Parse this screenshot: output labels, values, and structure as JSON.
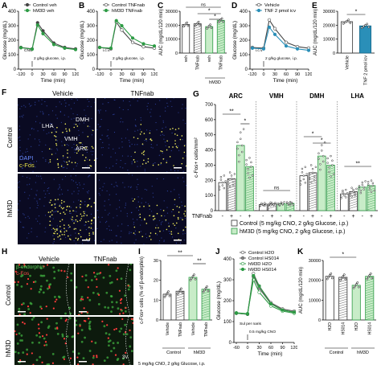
{
  "panel_letters": {
    "a": "A",
    "b": "B",
    "c": "C",
    "d": "D",
    "e": "E",
    "f": "F",
    "g": "G",
    "h": "H",
    "i": "I",
    "j": "J",
    "k": "K"
  },
  "colors": {
    "control": "#444444",
    "hm3d": "#2e9b45",
    "tnf": "#2a8fb8",
    "hm3d_fill": "#c8ecc8",
    "grey": "#9a9a9a"
  },
  "chart_data": [
    {
      "id": "A",
      "type": "line",
      "ylabel": "Glucose (mg/dL)",
      "xlabel": "Time (min)",
      "x": [
        -120,
        0,
        15,
        30,
        60,
        90,
        120
      ],
      "xticks": [
        "-120",
        "0",
        "30",
        "60",
        "90",
        "120"
      ],
      "yticks": [
        "0",
        "100",
        "200",
        "300",
        "400"
      ],
      "ylim": [
        0,
        400
      ],
      "annotations": [
        "CNO",
        "2 g/kg glucose, i.p."
      ],
      "series": [
        {
          "name": "Control veh",
          "values": [
            150,
            140,
            320,
            265,
            180,
            150,
            140
          ]
        },
        {
          "name": "hM3D veh",
          "values": [
            148,
            138,
            305,
            245,
            170,
            145,
            135
          ]
        }
      ]
    },
    {
      "id": "B",
      "type": "line",
      "ylabel": "Glucose (mg/dL)",
      "xlabel": "Time (min)",
      "x": [
        -120,
        0,
        15,
        30,
        60,
        90,
        120
      ],
      "xticks": [
        "-120",
        "0",
        "30",
        "60",
        "90",
        "120"
      ],
      "yticks": [
        "0",
        "100",
        "200",
        "300",
        "400"
      ],
      "ylim": [
        0,
        400
      ],
      "annotations": [
        "i.c.v",
        "2 g/kg glucose, i.p."
      ],
      "series": [
        {
          "name": "Control TNFnab",
          "values": [
            150,
            140,
            325,
            270,
            185,
            155,
            145
          ]
        },
        {
          "name": "hM3D TNFnab",
          "values": [
            150,
            145,
            335,
            300,
            215,
            175,
            160
          ]
        }
      ]
    },
    {
      "id": "C",
      "type": "bar",
      "ylabel": "AUC (mg/dL/120 min)",
      "ylim": [
        0,
        30000
      ],
      "yticks": [
        "0",
        "10000",
        "20000",
        "30000"
      ],
      "categories": [
        "veh",
        "TNFnab",
        "veh",
        "TNFnab"
      ],
      "groups": [
        "",
        "hM3D"
      ],
      "values": [
        20500,
        21000,
        19000,
        23500
      ],
      "sig": [
        "ns",
        "*",
        "*",
        "**"
      ]
    },
    {
      "id": "D",
      "type": "line",
      "ylabel": "Glucose (mg/dL)",
      "xlabel": "Time (min)",
      "x": [
        -120,
        0,
        15,
        30,
        60,
        90,
        120
      ],
      "xticks": [
        "-120",
        "0",
        "30",
        "60",
        "90",
        "120"
      ],
      "yticks": [
        "0",
        "100",
        "200",
        "300",
        "400"
      ],
      "ylim": [
        0,
        400
      ],
      "annotations": [
        "i.c.v",
        "2 g/kg glucose, i.p."
      ],
      "series": [
        {
          "name": "Vehicle",
          "values": [
            150,
            145,
            340,
            280,
            185,
            155,
            145
          ]
        },
        {
          "name": "TNF 2 pmol icv",
          "values": [
            145,
            140,
            290,
            240,
            160,
            140,
            130
          ]
        }
      ]
    },
    {
      "id": "E",
      "type": "bar",
      "ylabel": "AUC (mg/dL/120 min)",
      "ylim": [
        0,
        30000
      ],
      "yticks": [
        "0",
        "10000",
        "20000",
        "30000"
      ],
      "categories": [
        "Vehicle",
        "TNF 2 pmol icv"
      ],
      "values": [
        22500,
        19500
      ],
      "sig": [
        "*"
      ]
    },
    {
      "id": "G",
      "type": "bar",
      "ylabel": "c-Fos+ cells/mm²",
      "yticks": [
        "0",
        "100",
        "200",
        "300",
        "400",
        "500",
        "600",
        "700"
      ],
      "ylim": [
        0,
        700
      ],
      "regions": [
        "ARC",
        "VMH",
        "DMH",
        "LHA"
      ],
      "row_label": "TNFnab",
      "row_values": [
        "-",
        "+",
        "-",
        "+"
      ],
      "sig": [
        "**",
        "*",
        "ns",
        "*",
        "*",
        "**"
      ],
      "series": [
        {
          "name": "Control",
          "values": {
            "ARC": [
              185,
              210
            ],
            "VMH": [
              40,
              45
            ],
            "DMH": [
              230,
              250
            ],
            "LHA": [
              110,
              125
            ]
          }
        },
        {
          "name": "hM3D",
          "values": {
            "ARC": [
              430,
              290
            ],
            "VMH": [
              45,
              48
            ],
            "DMH": [
              360,
              300
            ],
            "LHA": [
              155,
              165
            ]
          }
        }
      ],
      "legend": [
        "Control (5 mg/kg CNO, 2 g/kg Glucose, i.p.)",
        "hM3D (5 mg/kg CNO, 2 g/kg Glucose, i.p.)"
      ]
    },
    {
      "id": "I",
      "type": "bar",
      "ylabel": "c-Fos+ cells (% of β-endorphin)",
      "ylim": [
        0,
        30
      ],
      "yticks": [
        "0",
        "10",
        "20",
        "30"
      ],
      "categories": [
        "Vehicle",
        "TNFnab",
        "Vehicle",
        "TNFnab"
      ],
      "groups": [
        "Control",
        "hM3D"
      ],
      "values": [
        13,
        14.5,
        21.5,
        15.5
      ],
      "sig": [
        "**",
        "**"
      ],
      "footnote": "5 mg/kg CNO, 2 g/kg Glucose, i.p."
    },
    {
      "id": "J",
      "type": "line",
      "ylabel": "Glucose (mg/dL)",
      "xlabel": "Time (min)",
      "x": [
        -60,
        0,
        15,
        30,
        60,
        90,
        120
      ],
      "xticks": [
        "-60",
        "0",
        "30",
        "60",
        "90",
        "120"
      ],
      "yticks": [
        "0",
        "100",
        "200",
        "300",
        "400"
      ],
      "ylim": [
        0,
        400
      ],
      "annotations": [
        "Sul per naris",
        "0.5 mg/kg CNO"
      ],
      "series": [
        {
          "name": "Control H2O",
          "values": [
            140,
            135,
            330,
            270,
            190,
            160,
            150
          ]
        },
        {
          "name": "Control HS014",
          "values": [
            140,
            135,
            315,
            260,
            185,
            155,
            145
          ]
        },
        {
          "name": "hM3D H2O",
          "values": [
            142,
            138,
            300,
            240,
            175,
            150,
            140
          ]
        },
        {
          "name": "hM3D HS014",
          "values": [
            140,
            136,
            320,
            270,
            185,
            155,
            145
          ]
        }
      ]
    },
    {
      "id": "K",
      "type": "bar",
      "ylabel": "AUC (mg/dL/120 min)",
      "ylim": [
        0,
        30000
      ],
      "yticks": [
        "0",
        "10000",
        "20000",
        "30000"
      ],
      "categories": [
        "H2O",
        "HS014",
        "H2O",
        "HS014"
      ],
      "groups": [
        "Control",
        "hM3D"
      ],
      "values": [
        22000,
        21500,
        17500,
        22000
      ],
      "sig": [
        "*"
      ]
    }
  ],
  "panel_f": {
    "col_headers": [
      "Vehicle",
      "TNFnab"
    ],
    "row_labels": [
      "Control",
      "hM3D"
    ],
    "labels_top": [
      "LHA",
      "DMH",
      "VMH",
      "ARC"
    ],
    "legend": [
      "DAPI",
      "c-Fos"
    ]
  },
  "panel_h": {
    "col_headers": [
      "Vehicle",
      "TNFnab"
    ],
    "row_labels": [
      "Control",
      "hM3D"
    ],
    "legend": [
      "β-endorphin",
      "c-Fos"
    ],
    "corner": "3V"
  }
}
